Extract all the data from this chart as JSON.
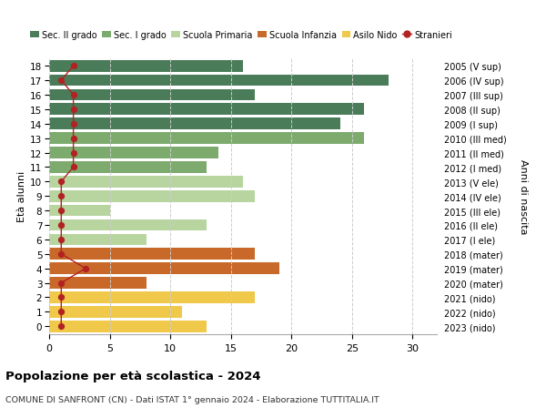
{
  "ages": [
    18,
    17,
    16,
    15,
    14,
    13,
    12,
    11,
    10,
    9,
    8,
    7,
    6,
    5,
    4,
    3,
    2,
    1,
    0
  ],
  "years": [
    "2005 (V sup)",
    "2006 (IV sup)",
    "2007 (III sup)",
    "2008 (II sup)",
    "2009 (I sup)",
    "2010 (III med)",
    "2011 (II med)",
    "2012 (I med)",
    "2013 (V ele)",
    "2014 (IV ele)",
    "2015 (III ele)",
    "2016 (II ele)",
    "2017 (I ele)",
    "2018 (mater)",
    "2019 (mater)",
    "2020 (mater)",
    "2021 (nido)",
    "2022 (nido)",
    "2023 (nido)"
  ],
  "bar_values": [
    16,
    28,
    17,
    26,
    24,
    26,
    14,
    13,
    16,
    17,
    5,
    13,
    8,
    17,
    19,
    8,
    17,
    11,
    13
  ],
  "bar_colors": [
    "#4a7c59",
    "#4a7c59",
    "#4a7c59",
    "#4a7c59",
    "#4a7c59",
    "#7dab6e",
    "#7dab6e",
    "#7dab6e",
    "#b8d5a0",
    "#b8d5a0",
    "#b8d5a0",
    "#b8d5a0",
    "#b8d5a0",
    "#c8692a",
    "#c8692a",
    "#c8692a",
    "#f0c84a",
    "#f0c84a",
    "#f0c84a"
  ],
  "stranieri_values": [
    2,
    1,
    2,
    2,
    2,
    2,
    2,
    2,
    1,
    1,
    1,
    1,
    1,
    1,
    3,
    1,
    1,
    1,
    1
  ],
  "stranieri_color": "#b22222",
  "legend_labels": [
    "Sec. II grado",
    "Sec. I grado",
    "Scuola Primaria",
    "Scuola Infanzia",
    "Asilo Nido",
    "Stranieri"
  ],
  "legend_colors": [
    "#4a7c59",
    "#7dab6e",
    "#b8d5a0",
    "#c8692a",
    "#f0c84a",
    "#b22222"
  ],
  "title": "Popolazione per età scolastica - 2024",
  "subtitle": "COMUNE DI SANFRONT (CN) - Dati ISTAT 1° gennaio 2024 - Elaborazione TUTTITALIA.IT",
  "ylabel_left": "Età alunni",
  "ylabel_right": "Anni di nascita",
  "xlim": [
    0,
    32
  ],
  "xticks": [
    0,
    5,
    10,
    15,
    20,
    25,
    30
  ],
  "background_color": "#ffffff",
  "grid_color": "#cccccc"
}
